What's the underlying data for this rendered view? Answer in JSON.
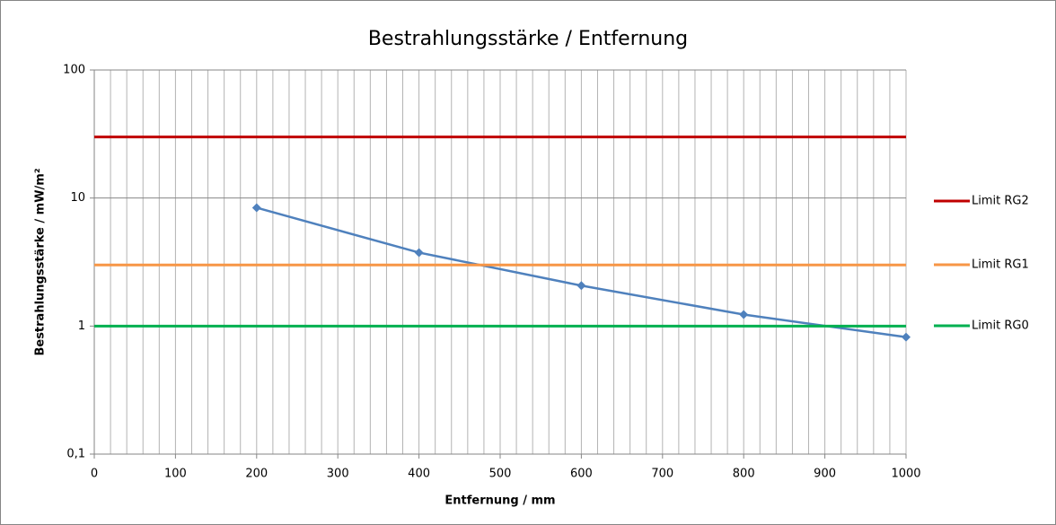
{
  "chart_data": {
    "type": "line",
    "title": "Bestrahlungsstärke / Entfernung",
    "x_label": "Entfernung / mm",
    "y_label": "Bestrahlungsstärke / mW/m²",
    "xlim": [
      0,
      1000
    ],
    "xticks": [
      0,
      100,
      200,
      300,
      400,
      500,
      600,
      700,
      800,
      900,
      1000
    ],
    "x_minor_grid_step": 20,
    "ylim": [
      0.1,
      100
    ],
    "yticks": [
      {
        "value": 0.1,
        "label": "0,1"
      },
      1,
      10,
      100
    ],
    "y_log": true,
    "grid": true,
    "legend": "right",
    "series": [
      {
        "color": "#4f81bd",
        "marker": "diamond",
        "x": [
          200,
          400,
          600,
          800,
          1000
        ],
        "values": [
          8.4,
          3.75,
          2.07,
          1.23,
          0.82
        ]
      },
      {
        "name": "Limit RG2",
        "color": "#c00000",
        "x": [
          0,
          1000
        ],
        "values": [
          30,
          30
        ]
      },
      {
        "name": "Limit RG1",
        "color": "#f79646",
        "x": [
          0,
          1000
        ],
        "values": [
          3,
          3
        ]
      },
      {
        "name": "Limit RG0",
        "color": "#00b050",
        "x": [
          0,
          1000
        ],
        "values": [
          1,
          1
        ]
      }
    ]
  }
}
